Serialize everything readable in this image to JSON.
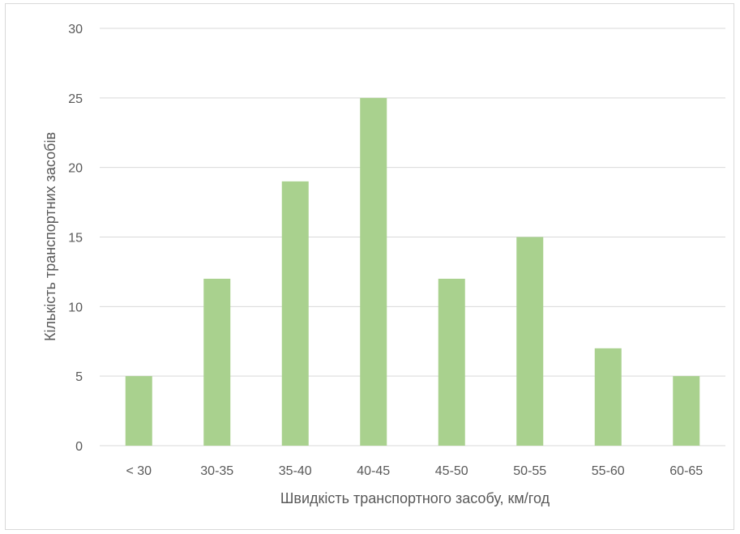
{
  "chart_data": {
    "type": "bar",
    "categories": [
      "< 30",
      "30-35",
      "35-40",
      "40-45",
      "45-50",
      "50-55",
      "55-60",
      "60-65"
    ],
    "values": [
      5,
      12,
      19,
      25,
      12,
      15,
      7,
      5
    ],
    "title": "",
    "xlabel": "Швидкість транспортного засобу, км/год",
    "ylabel": "Кількість транспортних засобів",
    "ylim": [
      0,
      30
    ],
    "yticks": [
      0,
      5,
      10,
      15,
      20,
      25,
      30
    ],
    "grid": true,
    "legend": "none",
    "bar_color": "#a9d18e",
    "gridline_color": "#d9d9d9",
    "text_color": "#595959"
  }
}
